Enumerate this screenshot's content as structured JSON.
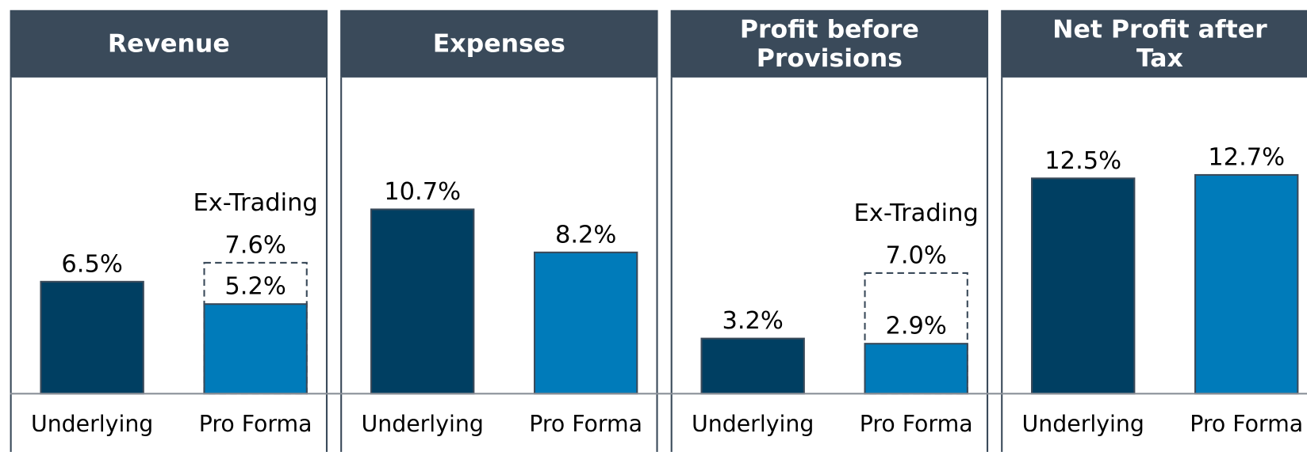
{
  "chart_data": [
    {
      "type": "bar",
      "title": "Revenue",
      "categories": [
        "Underlying",
        "Pro Forma"
      ],
      "values": [
        6.5,
        5.2
      ],
      "value_labels": [
        "6.5%",
        "5.2%"
      ],
      "colors": [
        "#003f62",
        "#007bba"
      ],
      "ex_trading": {
        "label": "Ex-Trading",
        "values": [
          null,
          7.6
        ],
        "value_labels": [
          null,
          "7.6%"
        ]
      }
    },
    {
      "type": "bar",
      "title": "Expenses",
      "categories": [
        "Underlying",
        "Pro Forma"
      ],
      "values": [
        10.7,
        8.2
      ],
      "value_labels": [
        "10.7%",
        "8.2%"
      ],
      "colors": [
        "#003f62",
        "#007bba"
      ]
    },
    {
      "type": "bar",
      "title": "Profit before Provisions",
      "categories": [
        "Underlying",
        "Pro Forma"
      ],
      "values": [
        3.2,
        2.9
      ],
      "value_labels": [
        "3.2%",
        "2.9%"
      ],
      "colors": [
        "#003f62",
        "#007bba"
      ],
      "ex_trading": {
        "label": "Ex-Trading",
        "values": [
          null,
          7.0
        ],
        "value_labels": [
          null,
          "7.0%"
        ]
      }
    },
    {
      "type": "bar",
      "title": "Net Profit after Tax",
      "categories": [
        "Underlying",
        "Pro Forma"
      ],
      "values": [
        12.5,
        12.7
      ],
      "value_labels": [
        "12.5%",
        "12.7%"
      ],
      "colors": [
        "#003f62",
        "#007bba"
      ]
    }
  ]
}
